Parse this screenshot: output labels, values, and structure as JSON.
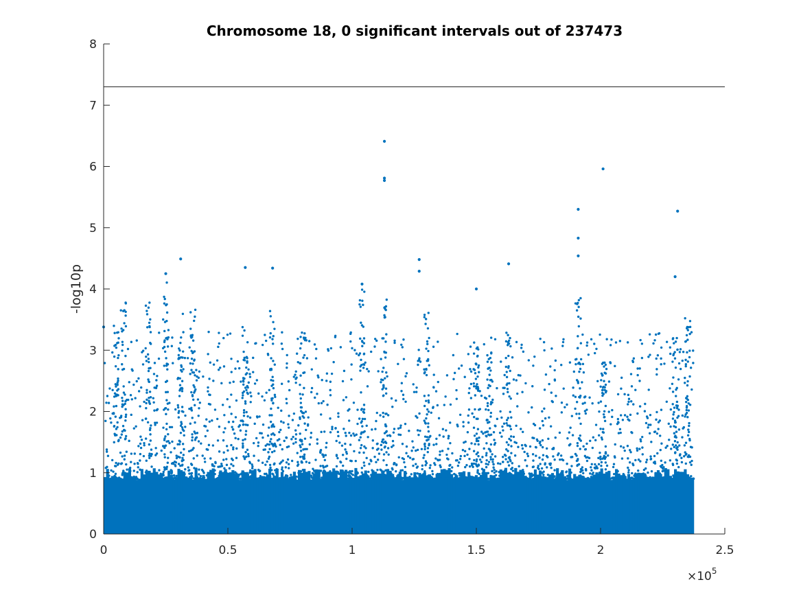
{
  "chart_data": {
    "type": "scatter",
    "title": "Chromosome 18, 0 significant intervals out of 237473",
    "xlabel": "",
    "ylabel": "-log10p",
    "xlim": [
      0,
      250000
    ],
    "ylim": [
      0,
      8
    ],
    "x_ticks": [
      "0",
      "0.5",
      "1",
      "1.5",
      "2",
      "2.5"
    ],
    "x_tick_values": [
      0,
      50000,
      100000,
      150000,
      200000,
      250000
    ],
    "x_multiplier": {
      "base": "×10",
      "exponent": "5"
    },
    "y_ticks": [
      "0",
      "1",
      "2",
      "3",
      "4",
      "5",
      "6",
      "7",
      "8"
    ],
    "y_tick_values": [
      0,
      1,
      2,
      3,
      4,
      5,
      6,
      7,
      8
    ],
    "threshold": 7.3,
    "marker_color": "#0072bd",
    "grid": false,
    "notable_points": [
      {
        "x": 113000,
        "y": 6.41
      },
      {
        "x": 113000,
        "y": 5.81
      },
      {
        "x": 113000,
        "y": 5.77
      },
      {
        "x": 201000,
        "y": 5.96
      },
      {
        "x": 191000,
        "y": 5.3
      },
      {
        "x": 191000,
        "y": 4.83
      },
      {
        "x": 191000,
        "y": 4.54
      },
      {
        "x": 231000,
        "y": 5.27
      },
      {
        "x": 31000,
        "y": 4.49
      },
      {
        "x": 127000,
        "y": 4.48
      },
      {
        "x": 127000,
        "y": 4.29
      },
      {
        "x": 163000,
        "y": 4.41
      },
      {
        "x": 57000,
        "y": 4.35
      },
      {
        "x": 68000,
        "y": 4.34
      },
      {
        "x": 25000,
        "y": 4.25
      },
      {
        "x": 230000,
        "y": 4.2
      },
      {
        "x": 104000,
        "y": 4.08
      },
      {
        "x": 150000,
        "y": 4.0
      },
      {
        "x": 0,
        "y": 3.38
      }
    ]
  }
}
